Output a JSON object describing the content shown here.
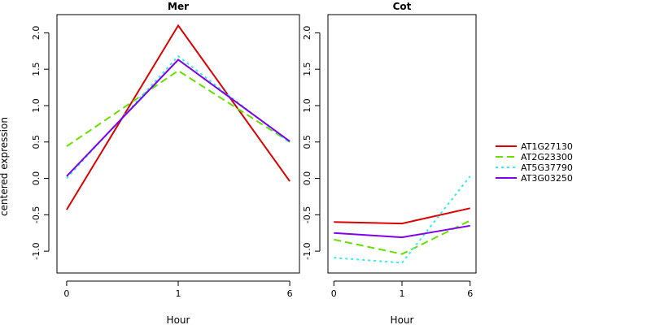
{
  "ylabel": "centered expression",
  "chart_data": [
    {
      "type": "line",
      "title": "Mer",
      "xlabel": "Hour",
      "ylabel": "centered expression",
      "categories": [
        "0",
        "1",
        "6"
      ],
      "ylim": [
        -1.3,
        2.25
      ],
      "yticks": [
        -1.0,
        -0.5,
        0.0,
        0.5,
        1.0,
        1.5,
        2.0
      ],
      "series": [
        {
          "name": "AT1G27130",
          "values": [
            -0.43,
            2.1,
            -0.04
          ]
        },
        {
          "name": "AT2G23300",
          "values": [
            0.44,
            1.48,
            0.5
          ]
        },
        {
          "name": "AT5G37790",
          "values": [
            0.0,
            1.68,
            0.49
          ]
        },
        {
          "name": "AT3G03250",
          "values": [
            0.03,
            1.63,
            0.51
          ]
        }
      ]
    },
    {
      "type": "line",
      "title": "Cot",
      "xlabel": "Hour",
      "categories": [
        "0",
        "1",
        "6"
      ],
      "ylim": [
        -1.3,
        2.25
      ],
      "yticks": [
        -1.0,
        -0.5,
        0.0,
        0.5,
        1.0,
        1.5,
        2.0
      ],
      "series": [
        {
          "name": "AT1G27130",
          "values": [
            -0.6,
            -0.62,
            -0.41
          ]
        },
        {
          "name": "AT2G23300",
          "values": [
            -0.84,
            -1.04,
            -0.58
          ]
        },
        {
          "name": "AT5G37790",
          "values": [
            -1.09,
            -1.16,
            0.03
          ]
        },
        {
          "name": "AT3G03250",
          "values": [
            -0.75,
            -0.81,
            -0.65
          ]
        }
      ]
    }
  ],
  "legend": {
    "placement": "right",
    "entries": [
      "AT1G27130",
      "AT2G23300",
      "AT5G37790",
      "AT3G03250"
    ]
  },
  "series_styles": [
    {
      "color": "#dd0000",
      "dash": "solid"
    },
    {
      "color": "#66e000",
      "dash": "dashed"
    },
    {
      "color": "#33eeee",
      "dash": "dotted"
    },
    {
      "color": "#7f00ee",
      "dash": "solid"
    }
  ]
}
